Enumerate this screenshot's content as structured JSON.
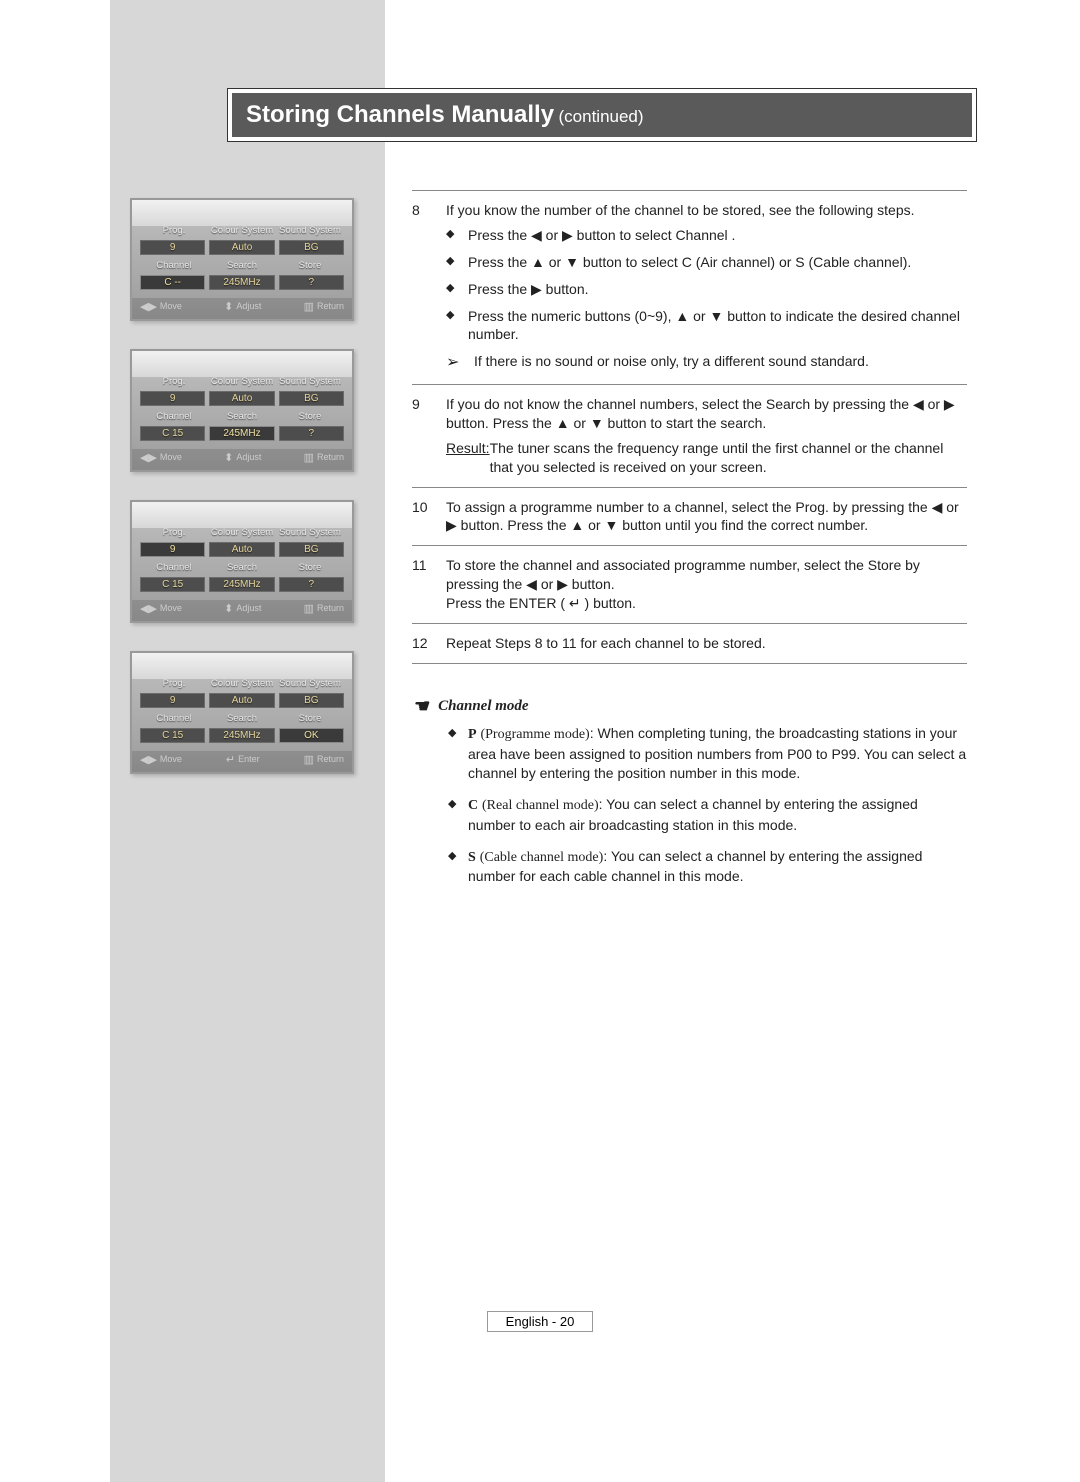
{
  "title": {
    "main": "Storing Channels Manually",
    "sub": "(continued)"
  },
  "arrows": {
    "left": "◀",
    "right": "▶",
    "up": "▲",
    "down": "▼",
    "note": "➢",
    "enter": "↵"
  },
  "osd": {
    "headers": {
      "prog": "Prog.",
      "colour": "Colour\nSystem",
      "sound": "Sound\nSystem",
      "channel": "Channel",
      "search": "Search",
      "store": "Store"
    },
    "footer": {
      "move": "Move",
      "adjust": "Adjust",
      "enter": "Enter",
      "return": "Return"
    },
    "screens": [
      {
        "prog": "9",
        "colour": "Auto",
        "sound": "BG",
        "channel": "C  --",
        "search": "245MHz",
        "store": "?",
        "highlight": "channel",
        "centerAction": "adjust"
      },
      {
        "prog": "9",
        "colour": "Auto",
        "sound": "BG",
        "channel": "C  15",
        "search": "245MHz",
        "store": "?",
        "highlight": "search",
        "centerAction": "adjust"
      },
      {
        "prog": "9",
        "colour": "Auto",
        "sound": "BG",
        "channel": "C  15",
        "search": "245MHz",
        "store": "?",
        "highlight": "prog",
        "centerAction": "adjust"
      },
      {
        "prog": "9",
        "colour": "Auto",
        "sound": "BG",
        "channel": "C  15",
        "search": "245MHz",
        "store": "OK",
        "highlight": "store",
        "centerAction": "enter"
      }
    ]
  },
  "steps": [
    {
      "n": "8",
      "intro": "If you know the number of the channel to be stored, see the following steps.",
      "bullets": [
        "Press the ◀ or ▶ button to select Channel .",
        "Press the ▲ or ▼ button to select C (Air channel) or S (Cable channel).",
        "Press the ▶ button.",
        "Press the numeric buttons (0~9), ▲ or ▼ button to indicate the desired channel number."
      ],
      "note": "If there is no sound or noise only, try a different sound standard."
    },
    {
      "n": "9",
      "intro": "If you do not know the channel numbers, select the Search  by pressing the ◀ or ▶ button. Press the ▲ or ▼ button to start the search.",
      "resultLabel": "Result:",
      "result": "The tuner scans the frequency range until the first channel or the channel that you selected is received on your screen."
    },
    {
      "n": "10",
      "intro": "To assign a programme number to a channel, select the Prog. by pressing the ◀ or ▶ button. Press the ▲ or ▼ button until you find the correct number."
    },
    {
      "n": "11",
      "intro": "To store the channel and associated programme number, select the Store  by pressing the ◀ or ▶ button.\nPress the ENTER ( ↵ ) button."
    },
    {
      "n": "12",
      "intro": "Repeat Steps 8 to 11 for each channel to be stored."
    }
  ],
  "channelMode": {
    "heading": "Channel mode",
    "items": [
      {
        "label": "P",
        "paren": "(Programme mode)",
        "text": ": When completing tuning, the broadcasting stations in your area have been assigned to position numbers from P00 to P99. You can select a channel by entering the position number in this mode."
      },
      {
        "label": "C",
        "paren": "(Real channel mode)",
        "text": ": You can select a channel by entering the assigned number to each air broadcasting station in this mode."
      },
      {
        "label": "S",
        "paren": "(Cable channel mode)",
        "text": ": You can select a channel by entering the assigned number for each cable channel in this mode."
      }
    ]
  },
  "footer": "English - 20"
}
